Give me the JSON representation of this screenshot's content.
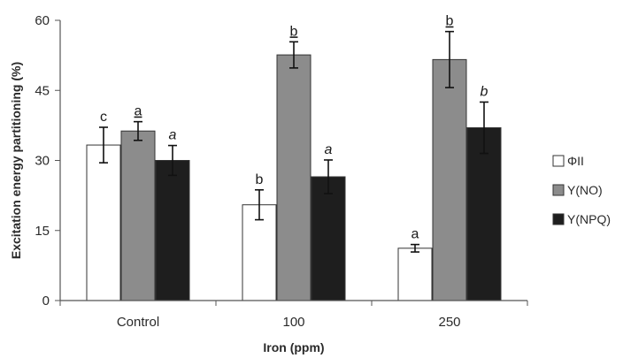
{
  "chart_data": {
    "type": "bar",
    "title": "",
    "xlabel": "Iron (ppm)",
    "ylabel": "Excitation energy partitioning (%)",
    "ylim": [
      0,
      60
    ],
    "yticks": [
      "0",
      "15",
      "30",
      "45",
      "60"
    ],
    "categories": [
      "Control",
      "100",
      "250"
    ],
    "grid": false,
    "legend_position": "right",
    "series": [
      {
        "name": "ΦII",
        "color": "#ffffff",
        "values": [
          33.3,
          20.5,
          11.2
        ],
        "errors": [
          3.8,
          3.2,
          0.8
        ],
        "sig_labels": [
          "c",
          "b",
          "a"
        ],
        "sig_style": "normal"
      },
      {
        "name": "Y(NO)",
        "color": "#8c8c8c",
        "values": [
          36.3,
          52.6,
          51.6
        ],
        "errors": [
          2.0,
          2.8,
          6.0
        ],
        "sig_labels": [
          "a",
          "b",
          "b"
        ],
        "sig_style": "underline"
      },
      {
        "name": "Y(NPQ)",
        "color": "#1e1e1e",
        "values": [
          30.0,
          26.5,
          37.0
        ],
        "errors": [
          3.2,
          3.6,
          5.5
        ],
        "sig_labels": [
          "a",
          "a",
          "b"
        ],
        "sig_style": "italic"
      }
    ]
  }
}
